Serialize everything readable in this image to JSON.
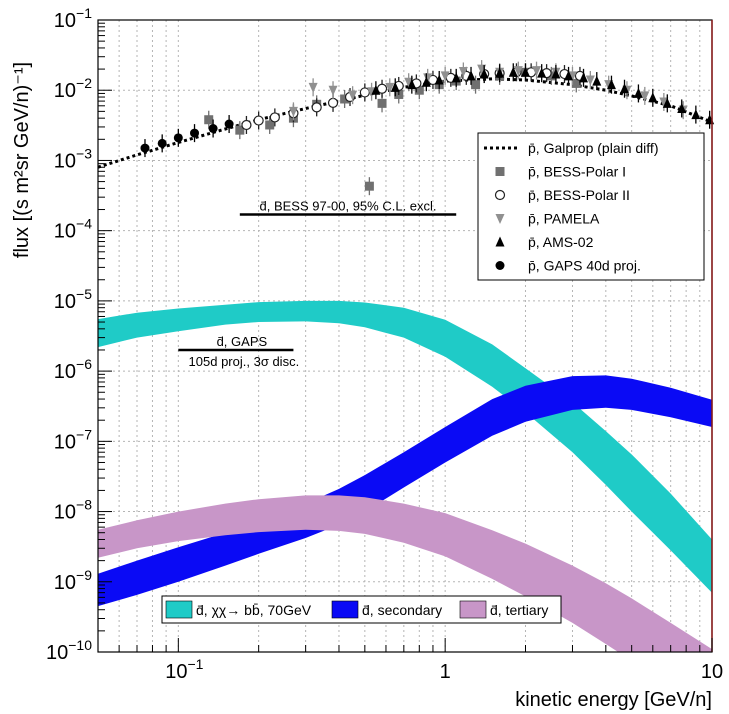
{
  "chart_data": {
    "type": "band-and-scatter",
    "xlabel": "kinetic energy [GeV/n]",
    "ylabel": "flux [(s m²sr GeV/n)⁻¹]",
    "xscale": "log",
    "yscale": "log",
    "xlim": [
      0.05,
      10
    ],
    "ylim": [
      1e-10,
      0.1
    ],
    "grid": true,
    "x_tick_labels": [
      {
        "x": 0.1,
        "base": "10",
        "exp": "−1"
      },
      {
        "x": 1,
        "base": "1",
        "exp": ""
      },
      {
        "x": 10,
        "base": "10",
        "exp": ""
      }
    ],
    "y_tick_labels": [
      {
        "y": -10,
        "base": "10",
        "exp": "−10"
      },
      {
        "y": -9,
        "base": "10",
        "exp": "−9"
      },
      {
        "y": -8,
        "base": "10",
        "exp": "−8"
      },
      {
        "y": -7,
        "base": "10",
        "exp": "−7"
      },
      {
        "y": -6,
        "base": "10",
        "exp": "−6"
      },
      {
        "y": -5,
        "base": "10",
        "exp": "−5"
      },
      {
        "y": -4,
        "base": "10",
        "exp": "−4"
      },
      {
        "y": -3,
        "base": "10",
        "exp": "−3"
      },
      {
        "y": -2,
        "base": "10",
        "exp": "−2"
      },
      {
        "y": -1,
        "base": "10",
        "exp": "−1"
      }
    ],
    "bands": [
      {
        "name": "d̄, χχ→ bb̄, 70GeV",
        "color": "#1fcbc7",
        "x": [
          0.05,
          0.07,
          0.1,
          0.15,
          0.2,
          0.3,
          0.4,
          0.5,
          0.7,
          1,
          1.5,
          2,
          3,
          4,
          5,
          7,
          10
        ],
        "low": [
          2.2e-06,
          3e-06,
          3.7e-06,
          4.6e-06,
          5e-06,
          5.1e-06,
          4.8e-06,
          4.2e-06,
          3e-06,
          1.6e-06,
          6e-07,
          2.6e-07,
          7e-08,
          2.4e-08,
          1e-08,
          2.8e-09,
          7e-10
        ],
        "high": [
          5.5e-06,
          6.8e-06,
          7.8e-06,
          8.8e-06,
          9.6e-06,
          1e-05,
          1e-05,
          9.5e-06,
          8e-06,
          5.4e-06,
          2.4e-06,
          1.1e-06,
          3.6e-07,
          1.4e-07,
          6.5e-08,
          1.8e-08,
          4e-09
        ]
      },
      {
        "name": "d̄, secondary",
        "color": "#0a0af5",
        "x": [
          0.05,
          0.07,
          0.1,
          0.15,
          0.2,
          0.3,
          0.4,
          0.5,
          0.7,
          1,
          1.5,
          2,
          3,
          4,
          5,
          7,
          10
        ],
        "low": [
          4.5e-10,
          6.5e-10,
          1e-09,
          1.7e-09,
          2.5e-09,
          4.2e-09,
          6.5e-09,
          1e-08,
          2.2e-08,
          5e-08,
          1.2e-07,
          1.9e-07,
          2.8e-07,
          3e-07,
          2.8e-07,
          2.2e-07,
          1.6e-07
        ],
        "high": [
          1.3e-09,
          2e-09,
          3.1e-09,
          5e-09,
          7.5e-09,
          1.3e-08,
          2.1e-08,
          3.3e-08,
          7e-08,
          1.6e-07,
          4e-07,
          6.2e-07,
          8.5e-07,
          8.7e-07,
          7.8e-07,
          5.8e-07,
          3.9e-07
        ]
      },
      {
        "name": "d̄, tertiary",
        "color": "#c896c8",
        "x": [
          0.05,
          0.07,
          0.1,
          0.15,
          0.2,
          0.3,
          0.4,
          0.5,
          0.7,
          1,
          1.5,
          2,
          3,
          4,
          5,
          7,
          10
        ],
        "low": [
          2.2e-09,
          3e-09,
          3.8e-09,
          4.6e-09,
          5.1e-09,
          5.5e-09,
          5.3e-09,
          4.8e-09,
          3.6e-09,
          2.3e-09,
          1.1e-09,
          6.2e-10,
          2.6e-10,
          1.3e-10,
          7.5e-11,
          3e-11,
          1.2e-11
        ],
        "high": [
          5.5e-09,
          7.5e-09,
          1e-08,
          1.3e-08,
          1.5e-08,
          1.7e-08,
          1.7e-08,
          1.6e-08,
          1.3e-08,
          9.5e-09,
          5.4e-09,
          3.5e-09,
          1.7e-09,
          9.5e-10,
          5.8e-10,
          2.6e-10,
          1.1e-10
        ]
      }
    ],
    "lines": [
      {
        "name": "p̄, Galprop (plain diff)",
        "style": "dotted",
        "color": "#000000",
        "x": [
          0.05,
          0.07,
          0.1,
          0.15,
          0.2,
          0.3,
          0.5,
          0.7,
          1,
          1.5,
          2,
          3,
          4,
          5,
          7,
          10
        ],
        "y": [
          0.0008,
          0.0012,
          0.0018,
          0.0028,
          0.0038,
          0.0055,
          0.0085,
          0.011,
          0.0135,
          0.0145,
          0.014,
          0.012,
          0.01,
          0.0083,
          0.006,
          0.0035
        ]
      }
    ],
    "scatter": [
      {
        "name": "p̄, BESS-Polar I",
        "marker": "square",
        "color": "#707070",
        "x": [
          0.13,
          0.17,
          0.22,
          0.27,
          0.33,
          0.42,
          0.52,
          0.58,
          0.67,
          0.8,
          0.95,
          1.1,
          1.3,
          1.6,
          2.0,
          2.5,
          3.1
        ],
        "y": [
          0.0038,
          0.0027,
          0.0032,
          0.004,
          0.0063,
          0.0075,
          0.00043,
          0.0065,
          0.0087,
          0.01,
          0.012,
          0.0135,
          0.012,
          0.016,
          0.018,
          0.016,
          0.0125
        ]
      },
      {
        "name": "p̄, BESS-Polar II",
        "marker": "open-circle",
        "color": "#222222",
        "x": [
          0.18,
          0.2,
          0.23,
          0.27,
          0.33,
          0.38,
          0.44,
          0.5,
          0.58,
          0.67,
          0.78,
          0.9,
          1.05,
          1.2,
          1.4,
          1.6,
          1.85,
          2.1,
          2.4,
          2.8,
          3.2
        ],
        "y": [
          0.0032,
          0.0037,
          0.0041,
          0.0047,
          0.0057,
          0.0066,
          0.008,
          0.0093,
          0.0105,
          0.0115,
          0.0125,
          0.014,
          0.015,
          0.016,
          0.017,
          0.0175,
          0.018,
          0.018,
          0.0175,
          0.017,
          0.016
        ]
      },
      {
        "name": "p̄, PAMELA",
        "marker": "triangle-down",
        "color": "#909090",
        "x": [
          0.27,
          0.32,
          0.38,
          0.45,
          0.53,
          0.62,
          0.73,
          0.86,
          1.0,
          1.17,
          1.37,
          1.6,
          1.88,
          2.2,
          2.6,
          3.0,
          3.5,
          4.1,
          4.8,
          5.6,
          6.6,
          7.8
        ],
        "y": [
          0.005,
          0.011,
          0.01,
          0.0085,
          0.0095,
          0.011,
          0.013,
          0.015,
          0.016,
          0.0185,
          0.02,
          0.018,
          0.019,
          0.019,
          0.018,
          0.016,
          0.014,
          0.012,
          0.01,
          0.0083,
          0.0068,
          0.0052
        ]
      },
      {
        "name": "p̄, AMS-02",
        "marker": "triangle-up",
        "color": "#000000",
        "x": [
          0.55,
          0.65,
          0.75,
          0.85,
          0.95,
          1.1,
          1.25,
          1.4,
          1.6,
          1.8,
          2.0,
          2.3,
          2.6,
          2.9,
          3.3,
          3.7,
          4.2,
          4.7,
          5.3,
          6.0,
          6.8,
          7.7,
          8.7,
          9.8
        ],
        "y": [
          0.01,
          0.011,
          0.012,
          0.013,
          0.014,
          0.015,
          0.016,
          0.017,
          0.0175,
          0.018,
          0.018,
          0.0175,
          0.017,
          0.016,
          0.015,
          0.0135,
          0.012,
          0.0105,
          0.009,
          0.0078,
          0.0065,
          0.0055,
          0.0045,
          0.0038
        ]
      },
      {
        "name": "p̄, GAPS 40d proj.",
        "marker": "filled-circle",
        "color": "#000000",
        "x": [
          0.075,
          0.087,
          0.1,
          0.115,
          0.135,
          0.155
        ],
        "y": [
          0.0015,
          0.00175,
          0.0021,
          0.00245,
          0.00285,
          0.0033
        ]
      }
    ],
    "limits": [
      {
        "text": "d̄, BESS 97-00, 95% C.L. excl.",
        "x_from": 0.17,
        "x_to": 1.1,
        "y": 0.00017
      },
      {
        "text": "d̄, GAPS",
        "text2": "105d proj., 3σ disc.",
        "x_from": 0.1,
        "x_to": 0.27,
        "y": 2e-06
      }
    ],
    "legend_top_right": [
      {
        "label": "p̄, Galprop (plain diff)",
        "symbol": "dotted-line"
      },
      {
        "label": "p̄, BESS-Polar I",
        "symbol": "square"
      },
      {
        "label": "p̄, BESS-Polar II",
        "symbol": "open-circle"
      },
      {
        "label": "p̄, PAMELA",
        "symbol": "triangle-down"
      },
      {
        "label": "p̄, AMS-02",
        "symbol": "triangle-up"
      },
      {
        "label": "p̄, GAPS 40d proj.",
        "symbol": "filled-circle"
      }
    ],
    "legend_bottom": [
      {
        "label": "d̄, χχ→ bb̄, 70GeV",
        "color": "#1fcbc7"
      },
      {
        "label": "d̄, secondary",
        "color": "#0a0af5"
      },
      {
        "label": "d̄, tertiary",
        "color": "#c896c8"
      }
    ]
  }
}
